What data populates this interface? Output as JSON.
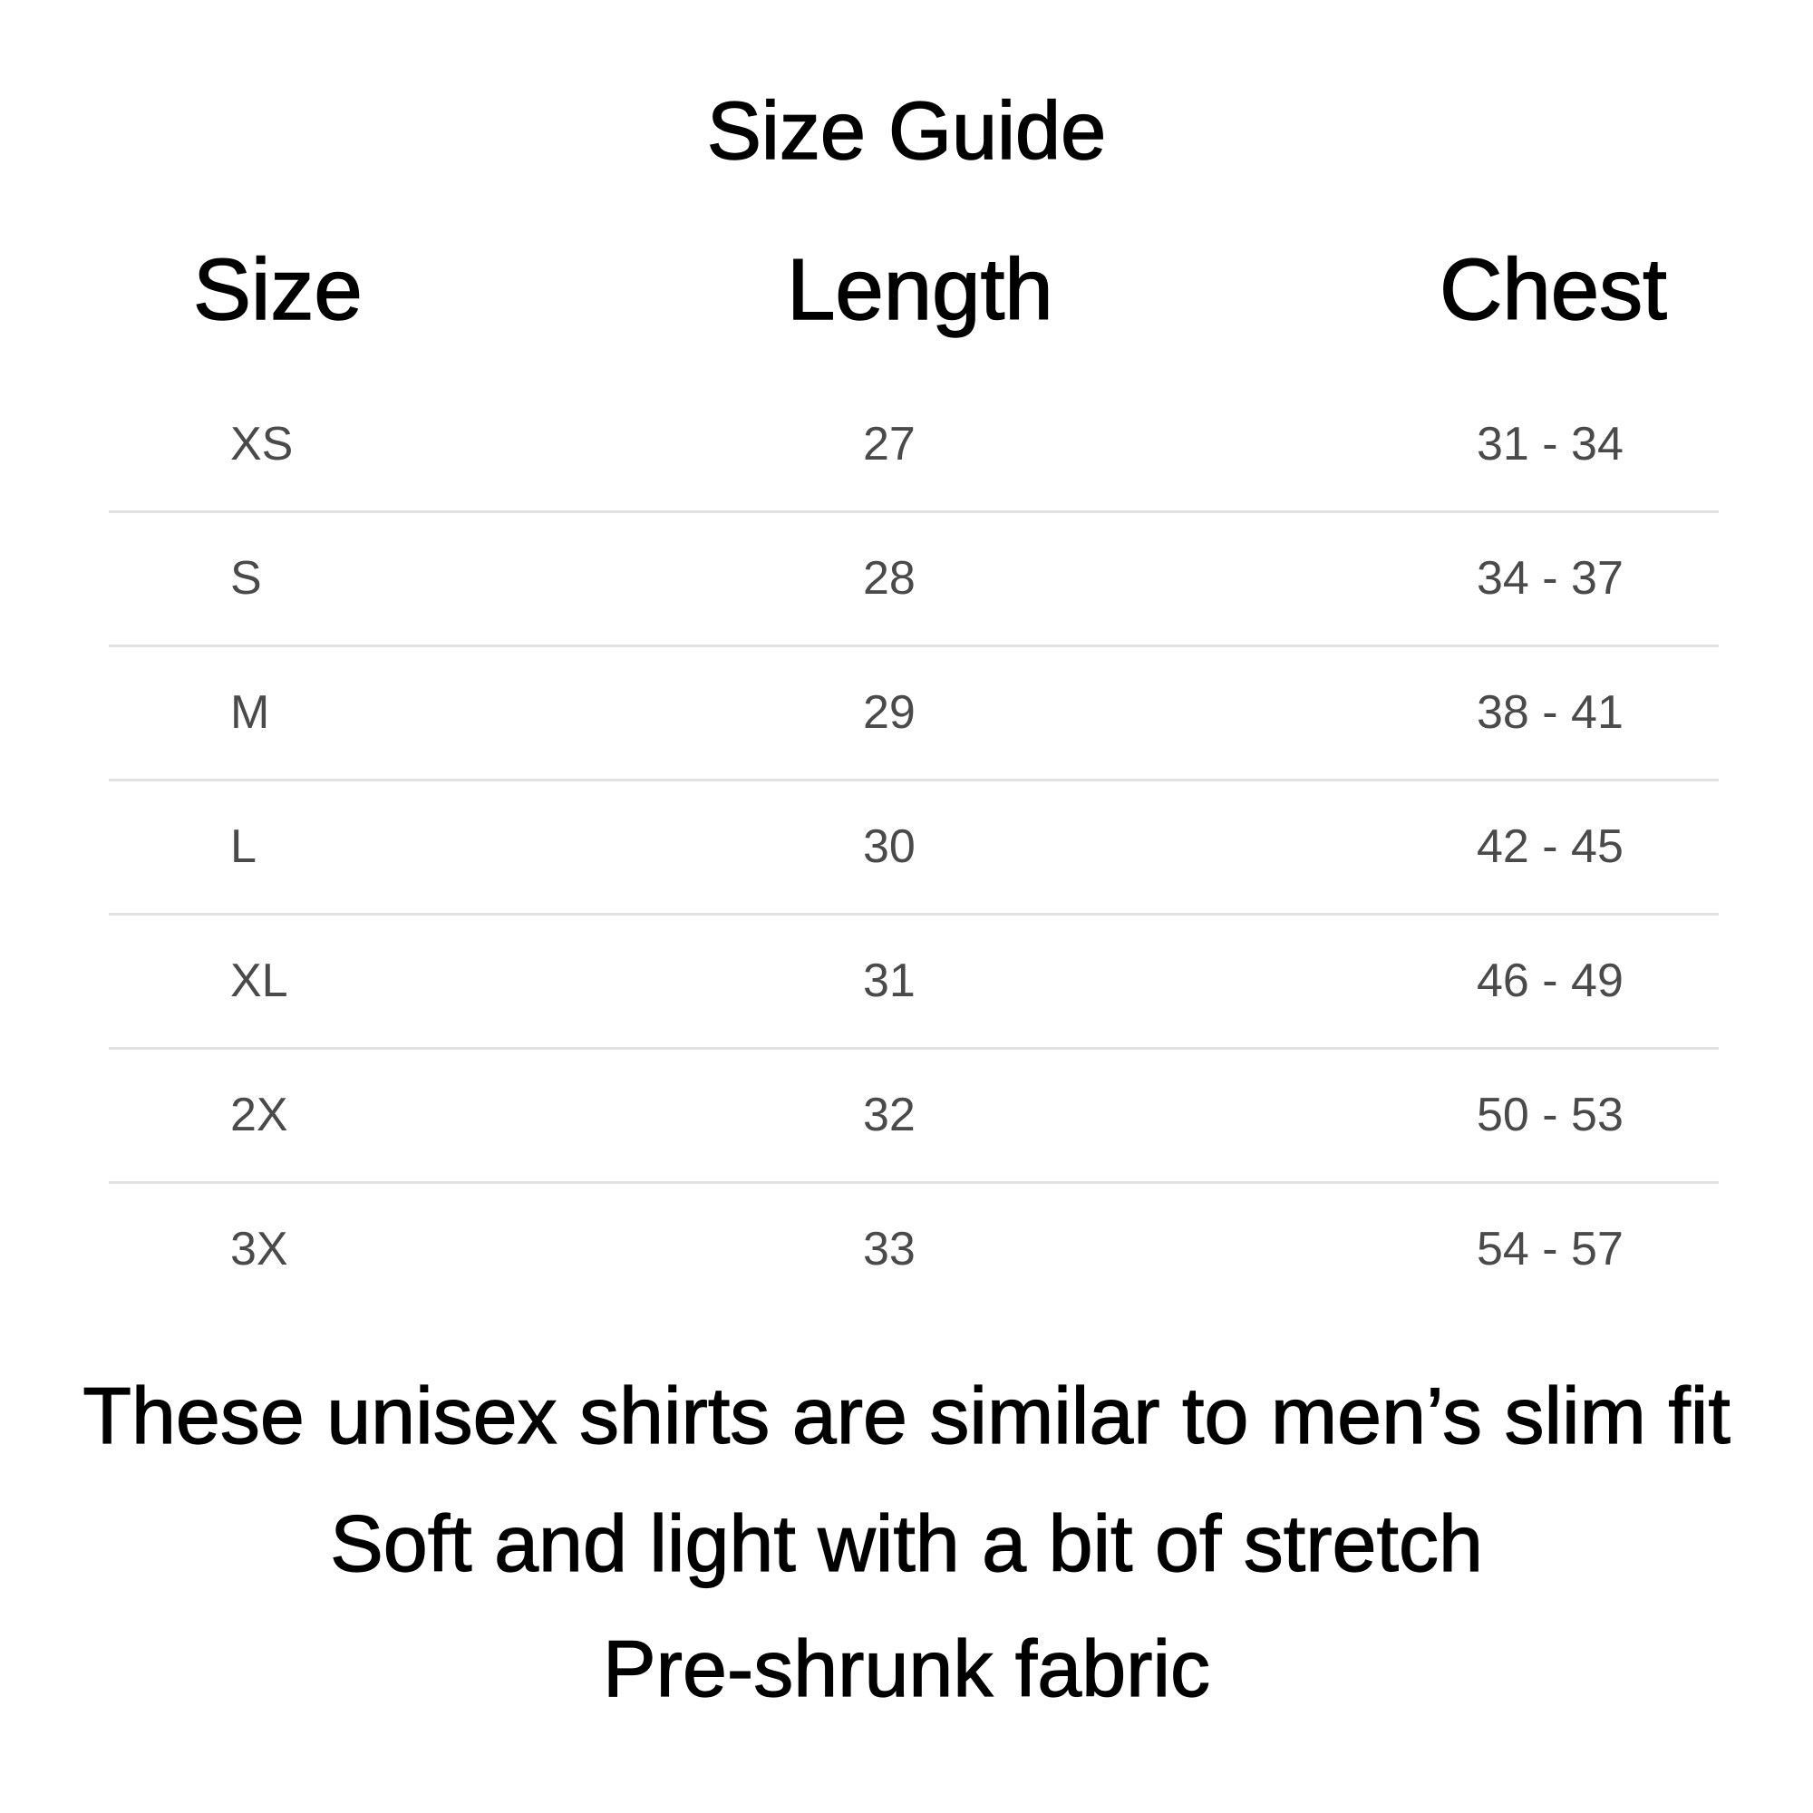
{
  "title": "Size Guide",
  "table": {
    "headers": [
      "Size",
      "Length",
      "Chest"
    ],
    "rows": [
      [
        "XS",
        "27",
        "31 - 34"
      ],
      [
        "S",
        "28",
        "34 - 37"
      ],
      [
        "M",
        "29",
        "38 - 41"
      ],
      [
        "L",
        "30",
        "42 - 45"
      ],
      [
        "XL",
        "31",
        "46 - 49"
      ],
      [
        "2X",
        "32",
        "50 - 53"
      ],
      [
        "3X",
        "33",
        "54 - 57"
      ]
    ]
  },
  "notes": [
    "These unisex shirts are similar to men’s slim fit",
    "Soft and light with a bit of stretch",
    "Pre-shrunk fabric"
  ],
  "colors": {
    "text": "#000000",
    "cell_text": "#4a4a4a",
    "divider": "#e2e2e2"
  }
}
